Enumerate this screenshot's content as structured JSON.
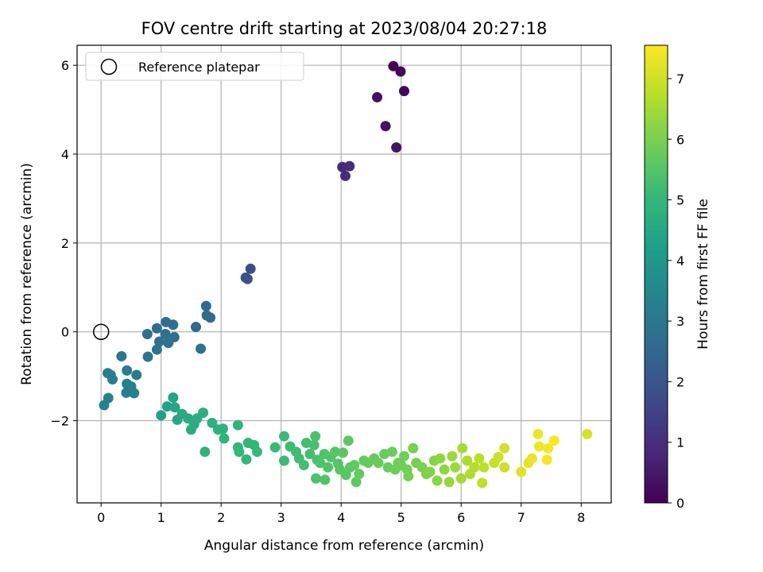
{
  "chart_data": {
    "type": "scatter",
    "title": "FOV centre drift starting at 2023/08/04 20:27:18",
    "xlabel": "Angular distance from reference (arcmin)",
    "ylabel": "Rotation from reference (arcmin)",
    "xlim": [
      -0.4,
      8.5
    ],
    "ylim": [
      -3.85,
      6.45
    ],
    "xticks": [
      0,
      1,
      2,
      3,
      4,
      5,
      6,
      7,
      8
    ],
    "yticks": [
      -2,
      0,
      2,
      4,
      6
    ],
    "grid": true,
    "legend": {
      "placement": "top-left",
      "entries": [
        {
          "label": "Reference platepar",
          "marker": "open-circle"
        }
      ]
    },
    "reference_point": {
      "x": 0,
      "y": 0
    },
    "colorbar": {
      "label": "Hours from first FF file",
      "colormap": "viridis",
      "range": [
        0,
        7.55
      ],
      "ticks": [
        0,
        1,
        2,
        3,
        4,
        5,
        6,
        7
      ]
    },
    "colormap_stops": [
      "#440154",
      "#482878",
      "#3e4989",
      "#31688e",
      "#26828e",
      "#1f9e89",
      "#35b779",
      "#6ece58",
      "#b5de2b",
      "#fde725"
    ],
    "points": [
      {
        "x": 4.87,
        "y": 5.98,
        "t": 0.0
      },
      {
        "x": 4.99,
        "y": 5.86,
        "t": 0.05
      },
      {
        "x": 5.05,
        "y": 5.42,
        "t": 0.1
      },
      {
        "x": 4.6,
        "y": 5.28,
        "t": 0.3
      },
      {
        "x": 4.74,
        "y": 4.63,
        "t": 0.35
      },
      {
        "x": 4.92,
        "y": 4.15,
        "t": 0.4
      },
      {
        "x": 4.02,
        "y": 3.71,
        "t": 0.9
      },
      {
        "x": 4.14,
        "y": 3.73,
        "t": 0.95
      },
      {
        "x": 4.07,
        "y": 3.51,
        "t": 1.0
      },
      {
        "x": 2.49,
        "y": 1.42,
        "t": 1.8
      },
      {
        "x": 2.41,
        "y": 1.22,
        "t": 1.85
      },
      {
        "x": 2.44,
        "y": 1.19,
        "t": 1.9
      },
      {
        "x": 1.75,
        "y": 0.58,
        "t": 2.6
      },
      {
        "x": 1.76,
        "y": 0.37,
        "t": 2.62
      },
      {
        "x": 1.82,
        "y": 0.32,
        "t": 2.64
      },
      {
        "x": 1.58,
        "y": 0.11,
        "t": 2.66
      },
      {
        "x": 1.08,
        "y": 0.22,
        "t": 2.7
      },
      {
        "x": 1.2,
        "y": 0.16,
        "t": 2.72
      },
      {
        "x": 0.93,
        "y": 0.08,
        "t": 2.74
      },
      {
        "x": 0.77,
        "y": -0.05,
        "t": 2.76
      },
      {
        "x": 1.07,
        "y": -0.05,
        "t": 2.78
      },
      {
        "x": 1.22,
        "y": -0.12,
        "t": 2.8
      },
      {
        "x": 0.97,
        "y": -0.22,
        "t": 2.82
      },
      {
        "x": 1.12,
        "y": -0.25,
        "t": 2.84
      },
      {
        "x": 0.93,
        "y": -0.4,
        "t": 2.86
      },
      {
        "x": 1.66,
        "y": -0.38,
        "t": 2.88
      },
      {
        "x": 0.78,
        "y": -0.56,
        "t": 2.9
      },
      {
        "x": 0.34,
        "y": -0.55,
        "t": 3.0
      },
      {
        "x": 0.43,
        "y": -0.87,
        "t": 3.05
      },
      {
        "x": 0.59,
        "y": -0.97,
        "t": 3.1
      },
      {
        "x": 0.11,
        "y": -0.93,
        "t": 3.15
      },
      {
        "x": 0.16,
        "y": -0.97,
        "t": 3.18
      },
      {
        "x": 0.19,
        "y": -1.07,
        "t": 3.2
      },
      {
        "x": 0.43,
        "y": -1.17,
        "t": 3.25
      },
      {
        "x": 0.5,
        "y": -1.23,
        "t": 3.28
      },
      {
        "x": 0.42,
        "y": -1.37,
        "t": 3.3
      },
      {
        "x": 0.55,
        "y": -1.38,
        "t": 3.32
      },
      {
        "x": 0.12,
        "y": -1.49,
        "t": 3.35
      },
      {
        "x": 0.05,
        "y": -1.65,
        "t": 3.38
      },
      {
        "x": 1.0,
        "y": -1.88,
        "t": 4.3
      },
      {
        "x": 1.1,
        "y": -1.68,
        "t": 4.35
      },
      {
        "x": 1.2,
        "y": -1.48,
        "t": 4.4
      },
      {
        "x": 1.23,
        "y": -1.7,
        "t": 4.45
      },
      {
        "x": 1.27,
        "y": -1.98,
        "t": 4.5
      },
      {
        "x": 1.35,
        "y": -1.85,
        "t": 4.55
      },
      {
        "x": 1.45,
        "y": -1.95,
        "t": 4.6
      },
      {
        "x": 1.5,
        "y": -2.2,
        "t": 4.65
      },
      {
        "x": 1.55,
        "y": -2.08,
        "t": 4.68
      },
      {
        "x": 1.6,
        "y": -1.95,
        "t": 4.7
      },
      {
        "x": 1.7,
        "y": -1.82,
        "t": 4.73
      },
      {
        "x": 1.85,
        "y": -2.05,
        "t": 4.76
      },
      {
        "x": 1.95,
        "y": -2.2,
        "t": 4.8
      },
      {
        "x": 2.03,
        "y": -2.18,
        "t": 4.82
      },
      {
        "x": 2.05,
        "y": -2.4,
        "t": 4.85
      },
      {
        "x": 1.73,
        "y": -2.7,
        "t": 4.88
      },
      {
        "x": 2.28,
        "y": -2.1,
        "t": 4.9
      },
      {
        "x": 2.28,
        "y": -2.6,
        "t": 4.92
      },
      {
        "x": 2.3,
        "y": -2.7,
        "t": 4.95
      },
      {
        "x": 2.45,
        "y": -2.5,
        "t": 4.98
      },
      {
        "x": 2.55,
        "y": -2.55,
        "t": 5.0
      },
      {
        "x": 2.42,
        "y": -2.87,
        "t": 5.02
      },
      {
        "x": 2.6,
        "y": -2.7,
        "t": 5.05
      },
      {
        "x": 2.9,
        "y": -2.6,
        "t": 5.1
      },
      {
        "x": 3.05,
        "y": -2.35,
        "t": 5.12
      },
      {
        "x": 3.05,
        "y": -2.9,
        "t": 5.15
      },
      {
        "x": 3.15,
        "y": -2.58,
        "t": 5.17
      },
      {
        "x": 3.25,
        "y": -2.7,
        "t": 5.2
      },
      {
        "x": 3.3,
        "y": -2.85,
        "t": 5.22
      },
      {
        "x": 3.38,
        "y": -3.0,
        "t": 5.25
      },
      {
        "x": 3.42,
        "y": -2.5,
        "t": 5.27
      },
      {
        "x": 3.48,
        "y": -2.75,
        "t": 5.3
      },
      {
        "x": 3.55,
        "y": -2.55,
        "t": 5.32
      },
      {
        "x": 3.57,
        "y": -2.35,
        "t": 5.34
      },
      {
        "x": 3.6,
        "y": -2.88,
        "t": 5.36
      },
      {
        "x": 3.58,
        "y": -3.3,
        "t": 5.38
      },
      {
        "x": 3.65,
        "y": -2.95,
        "t": 5.4
      },
      {
        "x": 3.72,
        "y": -2.75,
        "t": 5.42
      },
      {
        "x": 3.78,
        "y": -3.05,
        "t": 5.44
      },
      {
        "x": 3.73,
        "y": -3.33,
        "t": 5.46
      },
      {
        "x": 3.83,
        "y": -2.82,
        "t": 5.48
      },
      {
        "x": 3.9,
        "y": -2.7,
        "t": 5.5
      },
      {
        "x": 3.95,
        "y": -2.97,
        "t": 5.52
      },
      {
        "x": 3.98,
        "y": -3.1,
        "t": 5.54
      },
      {
        "x": 4.03,
        "y": -2.72,
        "t": 5.56
      },
      {
        "x": 4.08,
        "y": -3.22,
        "t": 5.58
      },
      {
        "x": 4.12,
        "y": -2.45,
        "t": 5.6
      },
      {
        "x": 4.15,
        "y": -3.05,
        "t": 5.62
      },
      {
        "x": 4.22,
        "y": -3.0,
        "t": 5.64
      },
      {
        "x": 4.25,
        "y": -3.38,
        "t": 5.66
      },
      {
        "x": 4.3,
        "y": -3.2,
        "t": 5.68
      },
      {
        "x": 4.38,
        "y": -2.9,
        "t": 5.7
      },
      {
        "x": 4.45,
        "y": -2.95,
        "t": 5.72
      },
      {
        "x": 4.55,
        "y": -2.85,
        "t": 5.74
      },
      {
        "x": 4.62,
        "y": -2.95,
        "t": 5.76
      },
      {
        "x": 4.72,
        "y": -2.75,
        "t": 5.78
      },
      {
        "x": 4.78,
        "y": -3.05,
        "t": 5.8
      },
      {
        "x": 4.85,
        "y": -2.7,
        "t": 5.82
      },
      {
        "x": 4.9,
        "y": -3.1,
        "t": 5.84
      },
      {
        "x": 4.95,
        "y": -2.95,
        "t": 5.86
      },
      {
        "x": 5.0,
        "y": -3.0,
        "t": 5.88
      },
      {
        "x": 5.05,
        "y": -2.8,
        "t": 5.9
      },
      {
        "x": 5.1,
        "y": -3.1,
        "t": 5.92
      },
      {
        "x": 5.12,
        "y": -3.25,
        "t": 5.94
      },
      {
        "x": 5.2,
        "y": -2.62,
        "t": 5.96
      },
      {
        "x": 5.25,
        "y": -2.95,
        "t": 5.98
      },
      {
        "x": 5.35,
        "y": -3.05,
        "t": 6.0
      },
      {
        "x": 5.42,
        "y": -3.2,
        "t": 6.05
      },
      {
        "x": 5.48,
        "y": -3.15,
        "t": 6.1
      },
      {
        "x": 5.55,
        "y": -2.9,
        "t": 6.15
      },
      {
        "x": 5.6,
        "y": -3.35,
        "t": 6.2
      },
      {
        "x": 5.65,
        "y": -2.85,
        "t": 6.25
      },
      {
        "x": 5.72,
        "y": -3.1,
        "t": 6.3
      },
      {
        "x": 5.8,
        "y": -3.38,
        "t": 6.35
      },
      {
        "x": 5.85,
        "y": -2.8,
        "t": 6.4
      },
      {
        "x": 5.9,
        "y": -3.05,
        "t": 6.45
      },
      {
        "x": 6.0,
        "y": -3.3,
        "t": 6.5
      },
      {
        "x": 6.02,
        "y": -2.62,
        "t": 6.55
      },
      {
        "x": 6.1,
        "y": -2.9,
        "t": 6.6
      },
      {
        "x": 6.15,
        "y": -3.2,
        "t": 6.65
      },
      {
        "x": 6.22,
        "y": -3.05,
        "t": 6.7
      },
      {
        "x": 6.3,
        "y": -2.85,
        "t": 6.75
      },
      {
        "x": 6.35,
        "y": -3.4,
        "t": 6.8
      },
      {
        "x": 6.38,
        "y": -3.05,
        "t": 6.82
      },
      {
        "x": 6.55,
        "y": -2.95,
        "t": 6.9
      },
      {
        "x": 6.62,
        "y": -2.82,
        "t": 6.95
      },
      {
        "x": 6.72,
        "y": -3.05,
        "t": 7.0
      },
      {
        "x": 6.72,
        "y": -2.62,
        "t": 7.05
      },
      {
        "x": 7.0,
        "y": -3.15,
        "t": 7.2
      },
      {
        "x": 7.12,
        "y": -2.95,
        "t": 7.25
      },
      {
        "x": 7.18,
        "y": -2.85,
        "t": 7.3
      },
      {
        "x": 7.28,
        "y": -2.3,
        "t": 7.35
      },
      {
        "x": 7.3,
        "y": -2.58,
        "t": 7.4
      },
      {
        "x": 7.43,
        "y": -2.88,
        "t": 7.42
      },
      {
        "x": 7.45,
        "y": -2.62,
        "t": 7.45
      },
      {
        "x": 7.55,
        "y": -2.45,
        "t": 7.5
      },
      {
        "x": 8.1,
        "y": -2.3,
        "t": 7.1
      }
    ]
  }
}
